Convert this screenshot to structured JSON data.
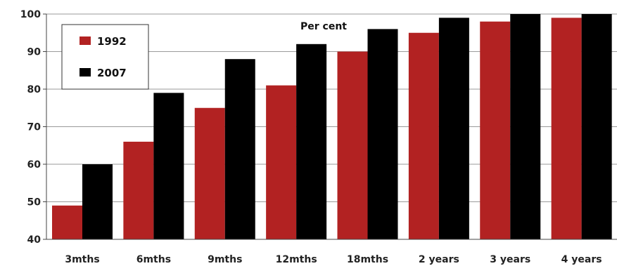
{
  "chart_data": {
    "type": "bar",
    "title": "",
    "unit_label": "Per cent",
    "xlabel": "",
    "ylabel": "",
    "ylim": [
      40,
      100
    ],
    "yticks": [
      40,
      50,
      60,
      70,
      80,
      90,
      100
    ],
    "grid": true,
    "legend_position": "top-left",
    "categories": [
      "3mths",
      "6mths",
      "9mths",
      "12mths",
      "18mths",
      "2 years",
      "3 years",
      "4 years"
    ],
    "series": [
      {
        "name": "1992",
        "color": "#b22222",
        "values": [
          49,
          66,
          75,
          81,
          90,
          95,
          98,
          99
        ]
      },
      {
        "name": "2007",
        "color": "#000000",
        "values": [
          60,
          79,
          88,
          92,
          96,
          99,
          100,
          100
        ]
      }
    ]
  }
}
